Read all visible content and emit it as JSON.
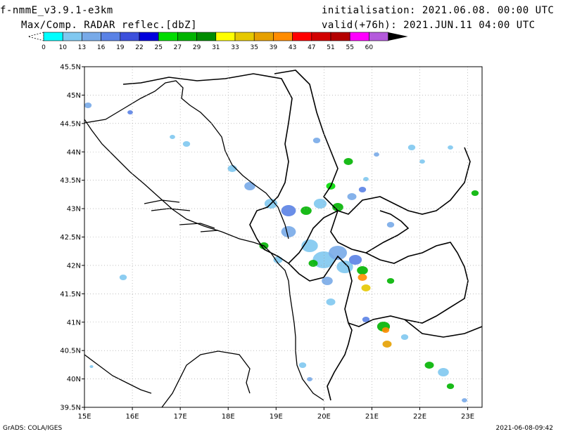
{
  "header": {
    "model": "f-nmmE_v3.9.1-e3km",
    "field": "Max/Comp. RADAR reflec.[dbZ]",
    "initialisation": "initialisation: 2021.06.08. 00:00 UTC",
    "valid": "valid(+76h): 2021.JUN.11 04:00 UTC"
  },
  "colorbar": {
    "ticks": [
      "0",
      "10",
      "13",
      "16",
      "19",
      "22",
      "25",
      "27",
      "29",
      "31",
      "33",
      "35",
      "39",
      "43",
      "47",
      "51",
      "55",
      "60"
    ],
    "colors": [
      "#ffffff",
      "#00ffff",
      "#80c8f0",
      "#78aae8",
      "#5a82e6",
      "#3c50dc",
      "#0000dc",
      "#00dc00",
      "#00b400",
      "#008c00",
      "#ffff00",
      "#e6c800",
      "#e6a000",
      "#ff8c00",
      "#ff0000",
      "#d20000",
      "#b40000",
      "#ff00ff",
      "#b45adc"
    ],
    "over_color": "#000000"
  },
  "map": {
    "lon_labels": [
      "15E",
      "16E",
      "17E",
      "18E",
      "19E",
      "20E",
      "21E",
      "22E",
      "23E"
    ],
    "lat_labels": [
      "45.5N",
      "45N",
      "44.5N",
      "44N",
      "43.5N",
      "43N",
      "42.5N",
      "42N",
      "41.5N",
      "41N",
      "40.5N",
      "40N",
      "39.5N"
    ],
    "lon_range": [
      15,
      23.3
    ],
    "lat_range": [
      39.5,
      45.5
    ],
    "grid": true
  },
  "footer": {
    "credit": "GrADS: COLA/IGES",
    "timestamp": "2021-06-08-09:42"
  }
}
